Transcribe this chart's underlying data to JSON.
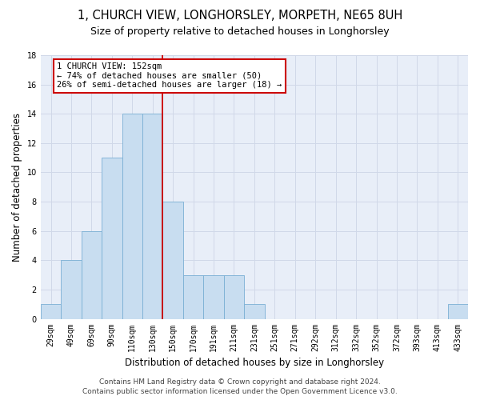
{
  "title": "1, CHURCH VIEW, LONGHORSLEY, MORPETH, NE65 8UH",
  "subtitle": "Size of property relative to detached houses in Longhorsley",
  "xlabel": "Distribution of detached houses by size in Longhorsley",
  "ylabel": "Number of detached properties",
  "bar_values": [
    1,
    4,
    6,
    11,
    14,
    14,
    8,
    3,
    3,
    3,
    1,
    0,
    0,
    0,
    0,
    0,
    0,
    0,
    0,
    0,
    1
  ],
  "bar_labels": [
    "29sqm",
    "49sqm",
    "69sqm",
    "90sqm",
    "110sqm",
    "130sqm",
    "150sqm",
    "170sqm",
    "191sqm",
    "211sqm",
    "231sqm",
    "251sqm",
    "271sqm",
    "292sqm",
    "312sqm",
    "332sqm",
    "352sqm",
    "372sqm",
    "393sqm",
    "413sqm",
    "433sqm"
  ],
  "bar_color": "#c8ddf0",
  "bar_edge_color": "#7aafd4",
  "property_line_color": "#cc0000",
  "property_line_index": 5,
  "annotation_line1": "1 CHURCH VIEW: 152sqm",
  "annotation_line2": "← 74% of detached houses are smaller (50)",
  "annotation_line3": "26% of semi-detached houses are larger (18) →",
  "annotation_box_facecolor": "#ffffff",
  "annotation_box_edgecolor": "#cc0000",
  "ylim_min": 0,
  "ylim_max": 18,
  "yticks": [
    0,
    2,
    4,
    6,
    8,
    10,
    12,
    14,
    16,
    18
  ],
  "grid_color": "#d0d8e8",
  "ax_facecolor": "#e8eef8",
  "fig_facecolor": "#ffffff",
  "title_fontsize": 10.5,
  "subtitle_fontsize": 9,
  "xlabel_fontsize": 8.5,
  "ylabel_fontsize": 8.5,
  "tick_fontsize": 7,
  "annot_fontsize": 7.5,
  "footer_fontsize": 6.5,
  "footer_line1": "Contains HM Land Registry data © Crown copyright and database right 2024.",
  "footer_line2": "Contains public sector information licensed under the Open Government Licence v3.0."
}
